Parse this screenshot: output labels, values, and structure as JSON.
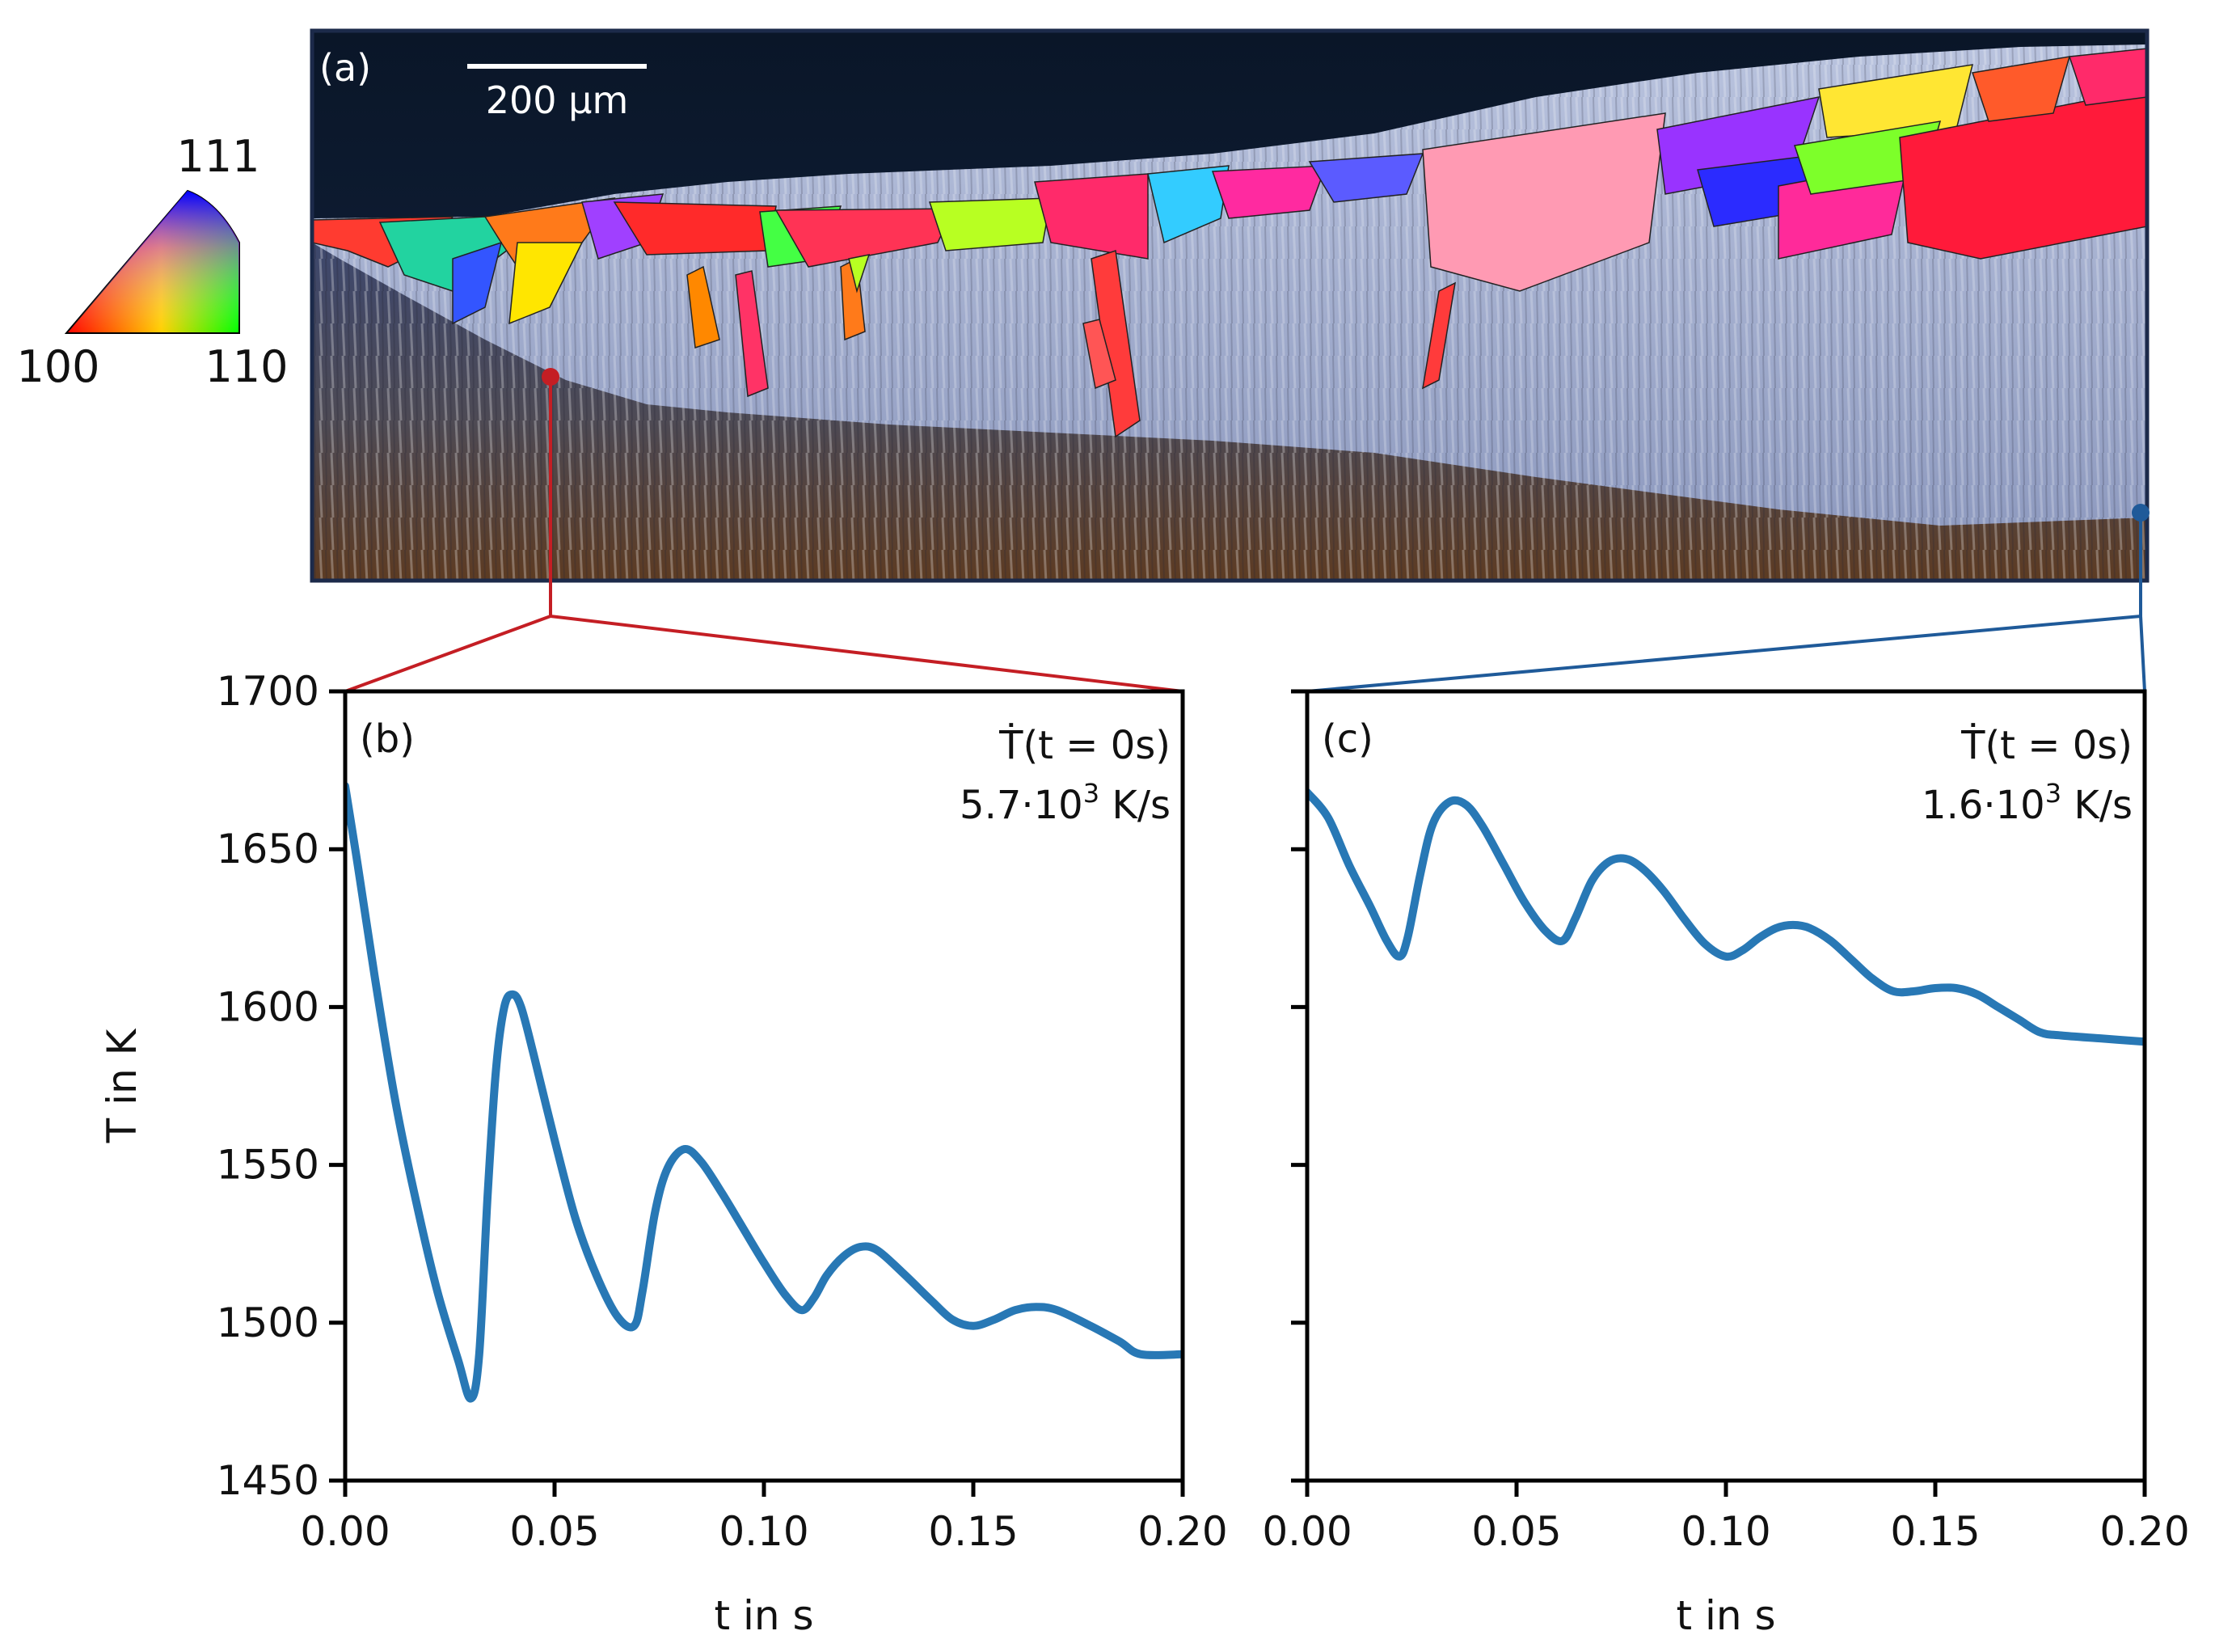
{
  "colors": {
    "curve": "#2878b5",
    "connector_b": "#c41e24",
    "connector_c": "#1f5a99",
    "axis": "#000000",
    "micrograph_border": "#1c2a4a",
    "background_dark": "#0d1a2e"
  },
  "panel_a": {
    "label": "(a)",
    "scale_bar": "200 µm",
    "ipf_key": {
      "corner_111": "111",
      "corner_100": "100",
      "corner_110": "110"
    }
  },
  "chart_data": [
    {
      "type": "line",
      "panel_label": "(b)",
      "annotation_line1": "Ṫ(t = 0s)",
      "annotation_value": "5.7·10",
      "annotation_exp": "3",
      "annotation_unit": " K/s",
      "xlabel": "t in s",
      "ylabel": "T in K",
      "xlim": [
        0.0,
        0.2
      ],
      "ylim": [
        1450,
        1700
      ],
      "xticks": [
        "0.00",
        "0.05",
        "0.10",
        "0.15",
        "0.20"
      ],
      "yticks": [
        "1450",
        "1500",
        "1550",
        "1600",
        "1650",
        "1700"
      ],
      "series": [
        {
          "name": "T",
          "points": [
            [
              0.0,
              1670
            ],
            [
              0.003,
              1645
            ],
            [
              0.007,
              1610
            ],
            [
              0.012,
              1570
            ],
            [
              0.017,
              1538
            ],
            [
              0.022,
              1510
            ],
            [
              0.027,
              1488
            ],
            [
              0.03,
              1476
            ],
            [
              0.032,
              1490
            ],
            [
              0.034,
              1540
            ],
            [
              0.036,
              1580
            ],
            [
              0.038,
              1600
            ],
            [
              0.04,
              1604
            ],
            [
              0.042,
              1600
            ],
            [
              0.045,
              1585
            ],
            [
              0.05,
              1558
            ],
            [
              0.055,
              1533
            ],
            [
              0.06,
              1515
            ],
            [
              0.065,
              1502
            ],
            [
              0.069,
              1499
            ],
            [
              0.071,
              1510
            ],
            [
              0.074,
              1535
            ],
            [
              0.077,
              1549
            ],
            [
              0.081,
              1555
            ],
            [
              0.085,
              1551
            ],
            [
              0.09,
              1541
            ],
            [
              0.095,
              1530
            ],
            [
              0.1,
              1519
            ],
            [
              0.105,
              1509
            ],
            [
              0.109,
              1504
            ],
            [
              0.112,
              1508
            ],
            [
              0.115,
              1515
            ],
            [
              0.119,
              1521
            ],
            [
              0.123,
              1524
            ],
            [
              0.127,
              1523
            ],
            [
              0.133,
              1516
            ],
            [
              0.14,
              1507
            ],
            [
              0.145,
              1501
            ],
            [
              0.15,
              1499
            ],
            [
              0.155,
              1501
            ],
            [
              0.16,
              1504
            ],
            [
              0.165,
              1505
            ],
            [
              0.17,
              1504
            ],
            [
              0.178,
              1499
            ],
            [
              0.185,
              1494
            ],
            [
              0.19,
              1490
            ],
            [
              0.2,
              1490
            ]
          ]
        }
      ]
    },
    {
      "type": "line",
      "panel_label": "(c)",
      "annotation_line1": "Ṫ(t = 0s)",
      "annotation_value": "1.6·10",
      "annotation_exp": "3",
      "annotation_unit": " K/s",
      "xlabel": "t in s",
      "ylabel": "",
      "xlim": [
        0.0,
        0.2
      ],
      "ylim": [
        1450,
        1700
      ],
      "xticks": [
        "0.00",
        "0.05",
        "0.10",
        "0.15",
        "0.20"
      ],
      "yticks": [
        "1450",
        "1500",
        "1550",
        "1600",
        "1650",
        "1700"
      ],
      "series": [
        {
          "name": "T",
          "points": [
            [
              0.0,
              1668
            ],
            [
              0.005,
              1660
            ],
            [
              0.01,
              1645
            ],
            [
              0.015,
              1632
            ],
            [
              0.019,
              1621
            ],
            [
              0.022,
              1616
            ],
            [
              0.024,
              1622
            ],
            [
              0.027,
              1642
            ],
            [
              0.03,
              1658
            ],
            [
              0.034,
              1665
            ],
            [
              0.038,
              1664
            ],
            [
              0.042,
              1657
            ],
            [
              0.047,
              1645
            ],
            [
              0.052,
              1633
            ],
            [
              0.057,
              1624
            ],
            [
              0.061,
              1621
            ],
            [
              0.064,
              1628
            ],
            [
              0.068,
              1640
            ],
            [
              0.072,
              1646
            ],
            [
              0.076,
              1647
            ],
            [
              0.08,
              1644
            ],
            [
              0.085,
              1637
            ],
            [
              0.09,
              1628
            ],
            [
              0.095,
              1620
            ],
            [
              0.1,
              1616
            ],
            [
              0.104,
              1618
            ],
            [
              0.108,
              1622
            ],
            [
              0.112,
              1625
            ],
            [
              0.116,
              1626
            ],
            [
              0.12,
              1625
            ],
            [
              0.125,
              1621
            ],
            [
              0.13,
              1615
            ],
            [
              0.135,
              1609
            ],
            [
              0.14,
              1605
            ],
            [
              0.145,
              1605
            ],
            [
              0.15,
              1606
            ],
            [
              0.155,
              1606
            ],
            [
              0.16,
              1604
            ],
            [
              0.165,
              1600
            ],
            [
              0.17,
              1596
            ],
            [
              0.175,
              1592
            ],
            [
              0.18,
              1591
            ],
            [
              0.19,
              1590
            ],
            [
              0.2,
              1589
            ]
          ]
        }
      ]
    }
  ]
}
